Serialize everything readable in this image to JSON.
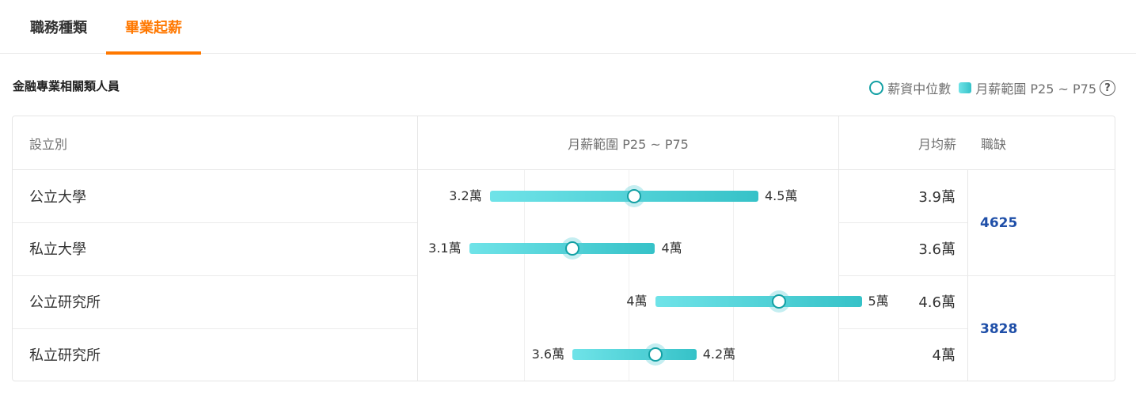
{
  "tabs": [
    {
      "label": "職務種類",
      "active": false
    },
    {
      "label": "畢業起薪",
      "active": true
    }
  ],
  "section_title": "金融專業相關類人員",
  "legend": {
    "median": "薪資中位數",
    "range": "月薪範圍 P25 ~ P75",
    "help_icon": "question-circle-icon"
  },
  "table": {
    "headers": {
      "type": "設立別",
      "range": "月薪範圍 P25 ~ P75",
      "avg": "月均薪",
      "vacancies": "職缺"
    },
    "rows": [
      {
        "type": "公立大學",
        "p25": 3.2,
        "median": 3.9,
        "p75": 4.5,
        "p25_label": "3.2萬",
        "p75_label": "4.5萬",
        "avg": "3.9萬"
      },
      {
        "type": "私立大學",
        "p25": 3.1,
        "median": 3.6,
        "p75": 4.0,
        "p25_label": "3.1萬",
        "p75_label": "4萬",
        "avg": "3.6萬"
      },
      {
        "type": "公立研究所",
        "p25": 4.0,
        "median": 4.6,
        "p75": 5.0,
        "p25_label": "4萬",
        "p75_label": "5萬",
        "avg": "4.6萬"
      },
      {
        "type": "私立研究所",
        "p25": 3.6,
        "median": 4.0,
        "p75": 4.2,
        "p25_label": "3.6萬",
        "p75_label": "4.2萬",
        "avg": "4萬"
      }
    ],
    "vacancy_groups": [
      {
        "value": "4625"
      },
      {
        "value": "3828"
      }
    ]
  },
  "colors": {
    "accent": "#ff7800",
    "bar_start": "#6fe3e8",
    "bar_end": "#36c2c8",
    "median_ring": "#13a0a4",
    "link": "#1f4fa8"
  }
}
